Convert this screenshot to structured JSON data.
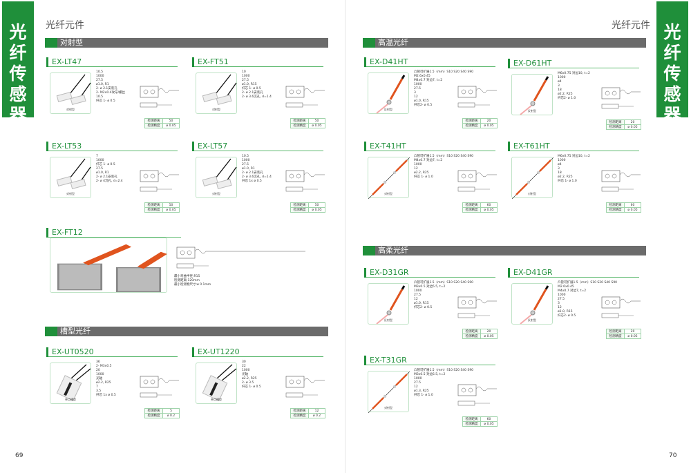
{
  "side_tab_title": "光纤传感器",
  "chapter_title": "光纤元件",
  "page_numbers": {
    "left": "69",
    "right": "70"
  },
  "colors": {
    "brand_green": "#1f8f3a",
    "section_gray": "#6b6b6b",
    "cable_orange": "#e0541e"
  },
  "spec_labels": {
    "distance": "检测距离",
    "precision": "检测精度"
  },
  "sections": [
    {
      "title": "对射型"
    },
    {
      "title": "槽型光纤"
    },
    {
      "title": "高温光纤"
    },
    {
      "title": "高柔光纤"
    }
  ],
  "products": [
    {
      "name": "EX-LT47",
      "photo_caption": "对射型",
      "photo": "slab",
      "notes": [
        "10.5",
        "1000",
        "27.5",
        "ø1.0, R1",
        "2- ø 2.1安装孔",
        "2- M2x0.4攻牙/螺丝",
        "10.5",
        "纤芯 1- ø 0.5"
      ],
      "distance": "50",
      "precision": "ø 0.05"
    },
    {
      "name": "EX-FT51",
      "photo_caption": "对射型",
      "photo": "slab",
      "notes": [
        "10",
        "1000",
        "27.5",
        "ø1.0, R15",
        "纤芯 1- ø 0.5",
        "2- ø 2.1安装孔",
        "2- ø 3.6沉孔, d=1.4"
      ],
      "distance": "50",
      "precision": "ø 0.05"
    },
    {
      "name": "EX-LT53",
      "photo_caption": "对射型",
      "photo": "slab",
      "notes": [
        "7",
        "1000",
        "纤芯 1- ø 0.5",
        "27.5",
        "ø1.0, R1",
        "2- ø 2.1安装孔",
        "2- ø 4沉孔, d=2.4"
      ],
      "distance": "50",
      "precision": "ø 0.05"
    },
    {
      "name": "EX-LT57",
      "photo_caption": "对射型",
      "photo": "slab",
      "notes": [
        "10.5",
        "1000",
        "27.5",
        "ø1.0, R1",
        "2- ø 2.1安装孔",
        "2- ø 3.6沉孔, d=1.4",
        "纤芯 1x ø 0.5"
      ],
      "distance": "50",
      "precision": "ø 0.05"
    },
    {
      "name": "EX-FT12",
      "photo_caption": "",
      "photo": "metal",
      "notes": [
        "最小弯曲半径:R15",
        "检测距离:120mm",
        "最小检测物尺寸:ø 0.1mm"
      ],
      "distance": "",
      "precision": ""
    },
    {
      "name": "EX-UT0520",
      "photo_caption": "单点槽型",
      "photo": "slot",
      "notes": [
        "36",
        "2- M3x0.5",
        "20",
        "1000",
        "光轴",
        "ø2.2, R25",
        "7",
        "3.5",
        "纤芯 1x ø 0.5"
      ],
      "distance": "5",
      "precision": "ø 0.2"
    },
    {
      "name": "EX-UT1220",
      "photo_caption": "单点槽型",
      "photo": "slot",
      "notes": [
        "30",
        "22",
        "1000",
        "光轴",
        "ø2.2, R25",
        "2- ø 3.5",
        "纤芯 1- ø 0.5"
      ],
      "distance": "12",
      "precision": "ø 0.2"
    },
    {
      "name": "EX-D41HT",
      "photo_caption": "反射型",
      "photo": "orange",
      "notes": [
        "凸管可扩展1.5（mm）S10  S20  S40  S90",
        "M2.6x0.45",
        "M4x0.7  对边7, t=2",
        "1000",
        "27.5",
        "3",
        "12",
        "ø1.0, R15",
        "纤芯2- ø 0.5"
      ],
      "distance": "20",
      "precision": "ø 0.05"
    },
    {
      "name": "EX-D61HT",
      "photo_caption": "反射型",
      "photo": "orange",
      "notes": [
        "M6x0.75  对边10, t=2",
        "1000",
        "ø4",
        "3",
        "18",
        "ø2.2, R25",
        "纤芯2- ø 1.0"
      ],
      "distance": "20",
      "precision": "ø 0.05"
    },
    {
      "name": "EX-T41HT",
      "photo_caption": "对射型",
      "photo": "thru",
      "notes": [
        "凸管可扩展1.5（mm）S10  S20  S40  S90",
        "M4x0.7  对边7, t=2",
        "1000",
        "12",
        "ø2.2, R25",
        "纤芯 1- ø 1.0"
      ],
      "distance": "60",
      "precision": "ø 0.05"
    },
    {
      "name": "EX-T61HT",
      "photo_caption": "对射型",
      "photo": "thru",
      "notes": [
        "M6x0.75  对边10, t=2",
        "1000",
        "ø4",
        "3",
        "18",
        "ø2.2, R25",
        "纤芯 1- ø 1.0"
      ],
      "distance": "60",
      "precision": "ø 0.05"
    },
    {
      "name": "EX-D31GR",
      "photo_caption": "反射型",
      "photo": "orange",
      "notes": [
        "凸管可扩展1.5（mm）S10  S20  S40  S90",
        "M3x0.5  对边5.5, t=2",
        "1000",
        "27.5",
        "12",
        "ø1.0, R15",
        "纤芯2- ø 0.5"
      ],
      "distance": "20",
      "precision": "ø 0.05"
    },
    {
      "name": "EX-D41GR",
      "photo_caption": "反射型",
      "photo": "orange",
      "notes": [
        "凸管可扩展1.5（mm）S10  S20  S40  S90",
        "M2.6x0.45",
        "M4x0.7  对边7, t=2",
        "1000",
        "27.5",
        "3",
        "12",
        "ø1.0, R15",
        "纤芯2- ø 0.5"
      ],
      "distance": "20",
      "precision": "ø 0.05"
    },
    {
      "name": "EX-T31GR",
      "photo_caption": "对射型",
      "photo": "thru",
      "notes": [
        "凸管可扩展1.5（mm）S10  S20  S40  S90",
        "M3x0.5  对边5.5, t=2",
        "1000",
        "27.5",
        "12",
        "ø1.3, R25",
        "纤芯 1- ø 1.0"
      ],
      "distance": "60",
      "precision": "ø 0.05"
    }
  ]
}
